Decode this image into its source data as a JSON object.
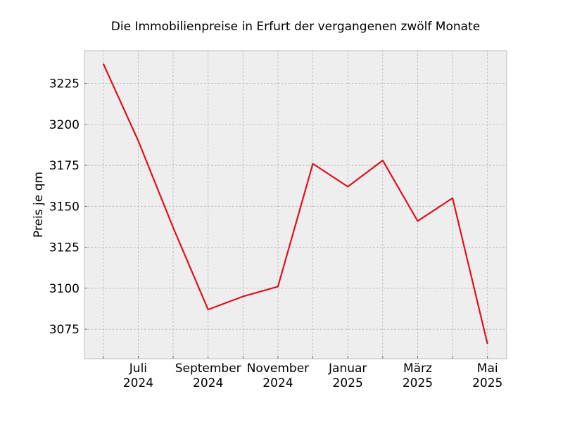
{
  "chart_data": {
    "type": "line",
    "title": "Die Immobilienpreise in Erfurt der vergangenen zwölf Monate",
    "xlabel": "",
    "ylabel": "Preis je qm",
    "x": [
      "2024-06",
      "2024-07",
      "2024-08",
      "2024-09",
      "2024-10",
      "2024-11",
      "2024-12",
      "2025-01",
      "2025-02",
      "2025-03",
      "2025-04",
      "2025-05"
    ],
    "series": [
      {
        "values": [
          3237,
          3190,
          3137,
          3087,
          3095,
          3101,
          3176,
          3162,
          3178,
          3141,
          3155,
          3066
        ]
      }
    ],
    "x_tick_labels": [
      {
        "x": "2024-07",
        "month": "Juli",
        "year": "2024"
      },
      {
        "x": "2024-09",
        "month": "September",
        "year": "2024"
      },
      {
        "x": "2024-11",
        "month": "November",
        "year": "2024"
      },
      {
        "x": "2025-01",
        "month": "Januar",
        "year": "2025"
      },
      {
        "x": "2025-03",
        "month": "März",
        "year": "2025"
      },
      {
        "x": "2025-05",
        "month": "Mai",
        "year": "2025"
      }
    ],
    "y_ticks": [
      3075,
      3100,
      3125,
      3150,
      3175,
      3200,
      3225
    ],
    "ylim": [
      3057,
      3245
    ],
    "grid": true,
    "colors": {
      "line": "#e0101f",
      "plot_background": "#eeeeee",
      "grid": "#b0b0b0"
    }
  }
}
